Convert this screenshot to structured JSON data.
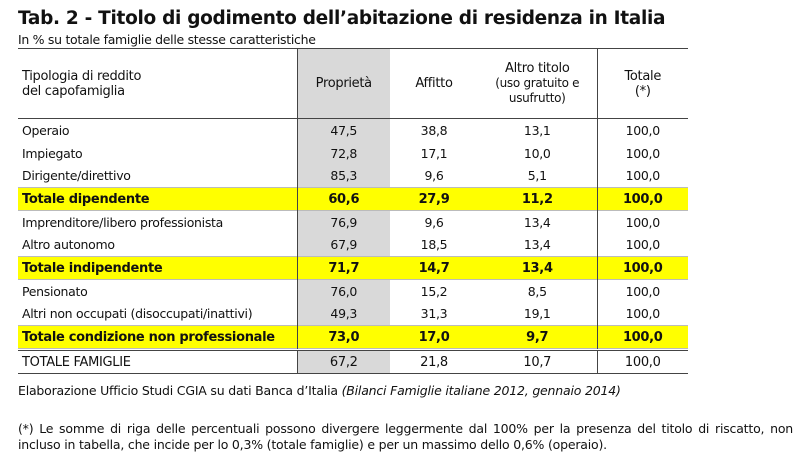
{
  "title": "Tab. 2 - Titolo di godimento dell’abitazione di residenza in Italia",
  "subtitle": "In % su totale famiglie delle stesse caratteristiche",
  "table": {
    "headers": {
      "label_line1": "Tipologia di reddito",
      "label_line2": "del capofamiglia",
      "col1": "Proprietà",
      "col2": "Affitto",
      "col3_line1": "Altro titolo",
      "col3_line2": "(uso gratuito e",
      "col3_line3": "usufrutto)",
      "col4_line1": "Totale",
      "col4_line2": "(*)"
    },
    "rows": [
      {
        "label": "Operaio",
        "v": [
          "47,5",
          "38,8",
          "13,1",
          "100,0"
        ]
      },
      {
        "label": "Impiegato",
        "v": [
          "72,8",
          "17,1",
          "10,0",
          "100,0"
        ]
      },
      {
        "label": "Dirigente/direttivo",
        "v": [
          "85,3",
          "9,6",
          "5,1",
          "100,0"
        ]
      },
      {
        "label": "Totale dipendente",
        "v": [
          "60,6",
          "27,9",
          "11,2",
          "100,0"
        ]
      },
      {
        "label": "Imprenditore/libero professionista",
        "v": [
          "76,9",
          "9,6",
          "13,4",
          "100,0"
        ]
      },
      {
        "label": "Altro autonomo",
        "v": [
          "67,9",
          "18,5",
          "13,4",
          "100,0"
        ]
      },
      {
        "label": "Totale indipendente",
        "v": [
          "71,7",
          "14,7",
          "13,4",
          "100,0"
        ]
      },
      {
        "label": "Pensionato",
        "v": [
          "76,0",
          "15,2",
          "8,5",
          "100,0"
        ]
      },
      {
        "label": "Altri non occupati (disoccupati/inattivi)",
        "v": [
          "49,3",
          "31,3",
          "19,1",
          "100,0"
        ]
      },
      {
        "label": "Totale condizione non professionale",
        "v": [
          "73,0",
          "17,0",
          "9,7",
          "100,0"
        ]
      },
      {
        "label": "TOTALE FAMIGLIE",
        "v": [
          "67,2",
          "21,8",
          "10,7",
          "100,0"
        ]
      }
    ]
  },
  "source": {
    "text": "Elaborazione Ufficio Studi CGIA su dati Banca d’Italia ",
    "italic": "(Bilanci Famiglie italiane 2012, gennaio 2014)"
  },
  "note": "(*) Le somme di riga delle percentuali possono divergere leggermente dal 100% per la presenza del titolo di riscatto, non incluso in tabella, che incide per lo 0,3% (totale famiglie) e per un massimo dello 0,6% (operaio).",
  "colors": {
    "highlight": "#ffff00",
    "proprieta_column": "#d9d9d9"
  }
}
